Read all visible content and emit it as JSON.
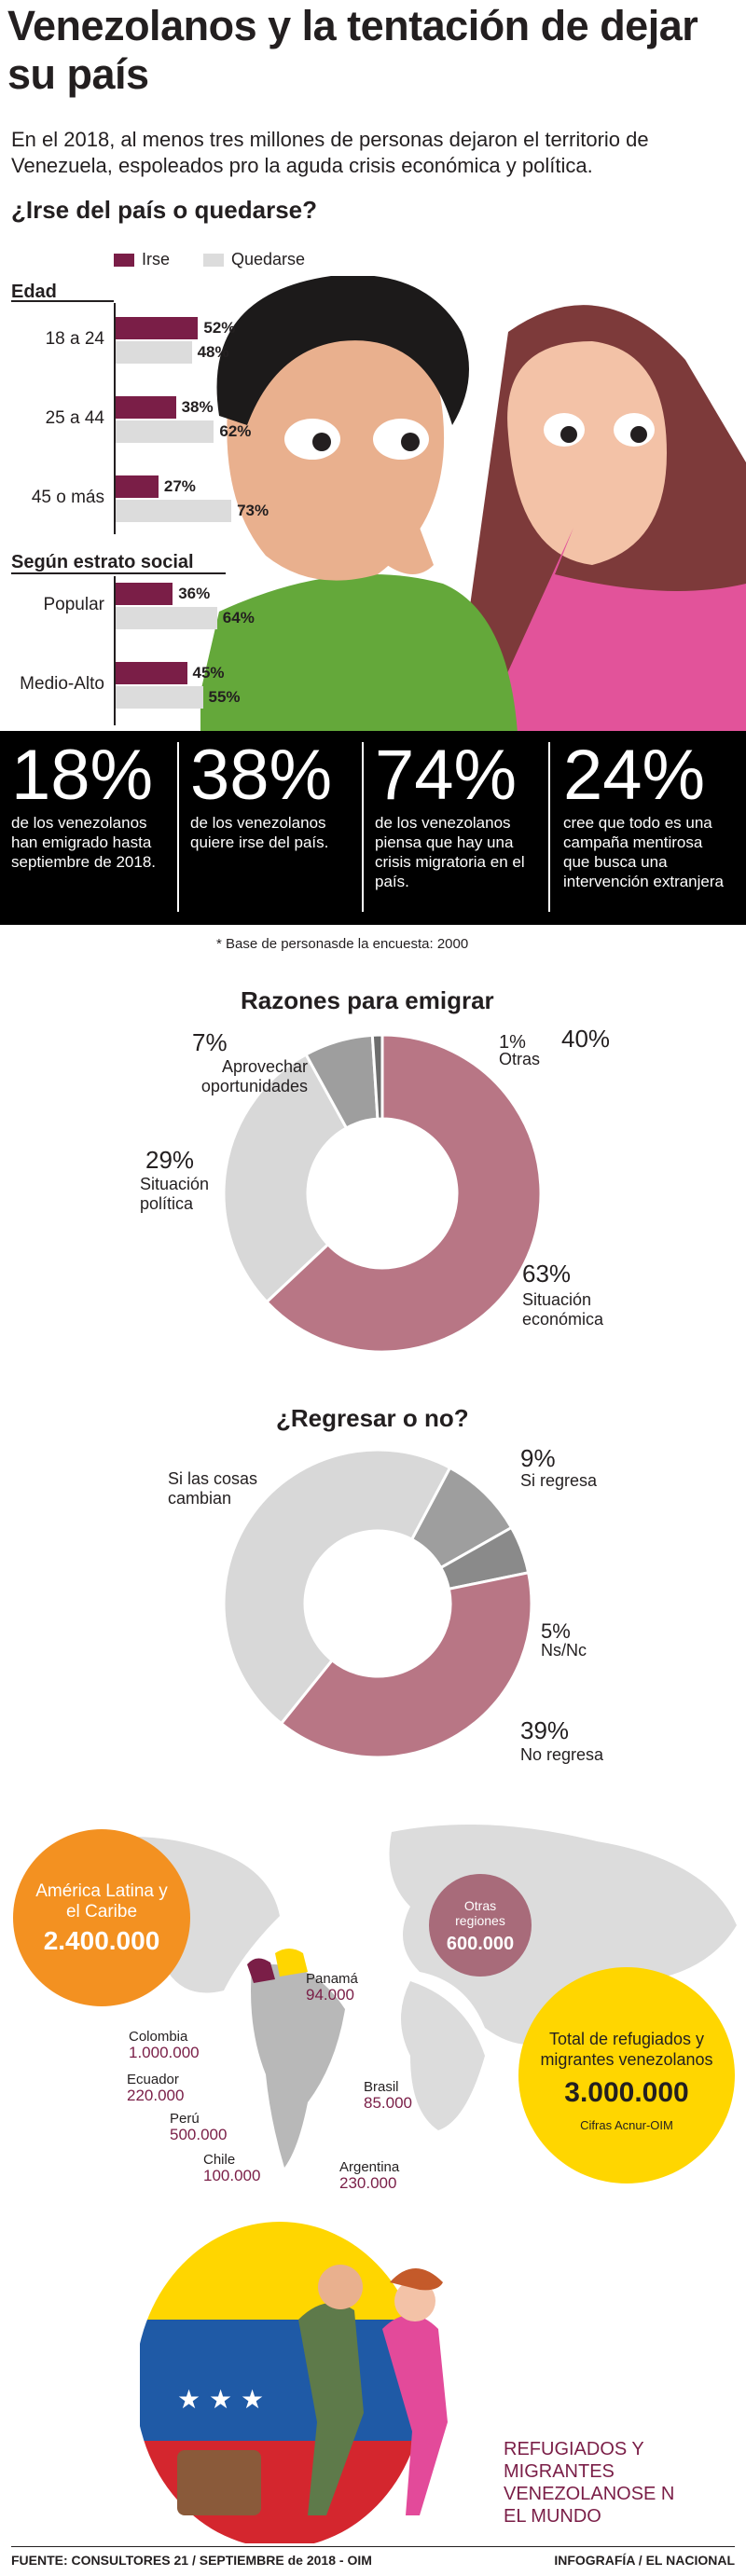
{
  "title": "Venezolanos y la tentación de dejar su país",
  "intro": "En el 2018, al menos tres millones de personas dejaron el territorio de Venezuela, espoleados pro la aguda crisis económica y política.",
  "colors": {
    "irse": "#7a1e47",
    "quedarse": "#dcdcdc",
    "pie_dark": "#b87685",
    "pie_light": "#d8d8d8",
    "pie_gray": "#9e9e9e",
    "orange": "#f39121",
    "yellow": "#ffd600"
  },
  "chart_data": [
    {
      "type": "bar",
      "title": "¿Irse del país o quedarse?",
      "legend": [
        "Irse",
        "Quedarse"
      ],
      "groups": [
        {
          "name": "Edad",
          "categories": [
            "18 a 24",
            "25 a 44",
            "45 o más"
          ],
          "series": [
            {
              "name": "Irse",
              "values": [
                52,
                38,
                27
              ]
            },
            {
              "name": "Quedarse",
              "values": [
                48,
                62,
                73
              ]
            }
          ]
        },
        {
          "name": "Según estrato social",
          "categories": [
            "Popular",
            "Medio-Alto"
          ],
          "series": [
            {
              "name": "Irse",
              "values": [
                36,
                45
              ]
            },
            {
              "name": "Quedarse",
              "values": [
                64,
                55
              ]
            }
          ]
        }
      ]
    },
    {
      "type": "pie",
      "title": "Razones para emigrar",
      "slices": [
        {
          "label": "Situación económica",
          "value": 63
        },
        {
          "label": "Situación política",
          "value": 29
        },
        {
          "label": "Aprovechar oportunidades",
          "value": 7
        },
        {
          "label": "Otras",
          "value": 1
        }
      ]
    },
    {
      "type": "pie",
      "title": "¿Regresar o no?",
      "slices": [
        {
          "label": "Si regresa",
          "value": 9
        },
        {
          "label": "Ns/Nc",
          "value": 5
        },
        {
          "label": "No regresa",
          "value": 39
        },
        {
          "label": "Si las cosas cambian",
          "value": 47
        }
      ]
    }
  ],
  "bars": {
    "title": "¿Irse del país o quedarse?",
    "legend_irse": "Irse",
    "legend_quedarse": "Quedarse",
    "group1": "Edad",
    "group2": "Según estrato social",
    "rows": [
      {
        "label": "18 a 24",
        "irse": "52%",
        "quedarse": "48%",
        "irse_v": 52,
        "quedarse_v": 48
      },
      {
        "label": "25 a 44",
        "irse": "38%",
        "quedarse": "62%",
        "irse_v": 38,
        "quedarse_v": 62
      },
      {
        "label": "45 o más",
        "irse": "27%",
        "quedarse": "73%",
        "irse_v": 27,
        "quedarse_v": 73
      },
      {
        "label": "Popular",
        "irse": "36%",
        "quedarse": "64%",
        "irse_v": 36,
        "quedarse_v": 64
      },
      {
        "label": "Medio-Alto",
        "irse": "45%",
        "quedarse": "55%",
        "irse_v": 45,
        "quedarse_v": 55
      }
    ]
  },
  "stats": [
    {
      "big": "18%",
      "text": "de los venezolanos han emigrado hasta septiembre de 2018."
    },
    {
      "big": "38%",
      "text": "de los venezolanos quiere irse del país."
    },
    {
      "big": "74%",
      "text": "de los venezolanos piensa que hay una crisis migratoria en el país."
    },
    {
      "big": "24%",
      "text": "cree que todo es una campaña mentirosa que busca una intervención extranjera"
    }
  ],
  "footnote": "* Base de personasde la encuesta: 2000",
  "pie1": {
    "title": "Razones para emigrar",
    "stray": "40%",
    "lbl_eco_pct": "63%",
    "lbl_eco": "Situación económica",
    "lbl_pol_pct": "29%",
    "lbl_pol": "Situación política",
    "lbl_opo_pct": "7%",
    "lbl_opo": "Aprovechar oportunidades",
    "lbl_otr_pct": "1%",
    "lbl_otr": "Otras"
  },
  "pie2": {
    "title": "¿Regresar o no?",
    "lbl_si_pct": "9%",
    "lbl_si": "Si regresa",
    "lbl_ns_pct": "5%",
    "lbl_ns": "Ns/Nc",
    "lbl_no_pct": "39%",
    "lbl_no": "No regresa",
    "lbl_cam": "Si las cosas cambian"
  },
  "map": {
    "latam_label": "América Latina y el Caribe",
    "latam_value": "2.400.000",
    "otras_label": "Otras regiones",
    "otras_value": "600.000",
    "total_label": "Total de refugiados y migrantes venezolanos",
    "total_value": "3.000.000",
    "source": "Cifras Acnur-OIM",
    "countries": [
      {
        "name": "Panamá",
        "value": "94.000"
      },
      {
        "name": "Colombia",
        "value": "1.000.000"
      },
      {
        "name": "Ecuador",
        "value": "220.000"
      },
      {
        "name": "Brasil",
        "value": "85.000"
      },
      {
        "name": "Perú",
        "value": "500.000"
      },
      {
        "name": "Chile",
        "value": "100.000"
      },
      {
        "name": "Argentina",
        "value": "230.000"
      }
    ]
  },
  "closing": "REFUGIADOS Y MIGRANTES VENEZOLANOSE N EL MUNDO",
  "footer_left": "FUENTE: CONSULTORES 21 / SEPTIEMBRE de 2018 - OIM",
  "footer_right": "INFOGRAFÍA / EL NACIONAL"
}
